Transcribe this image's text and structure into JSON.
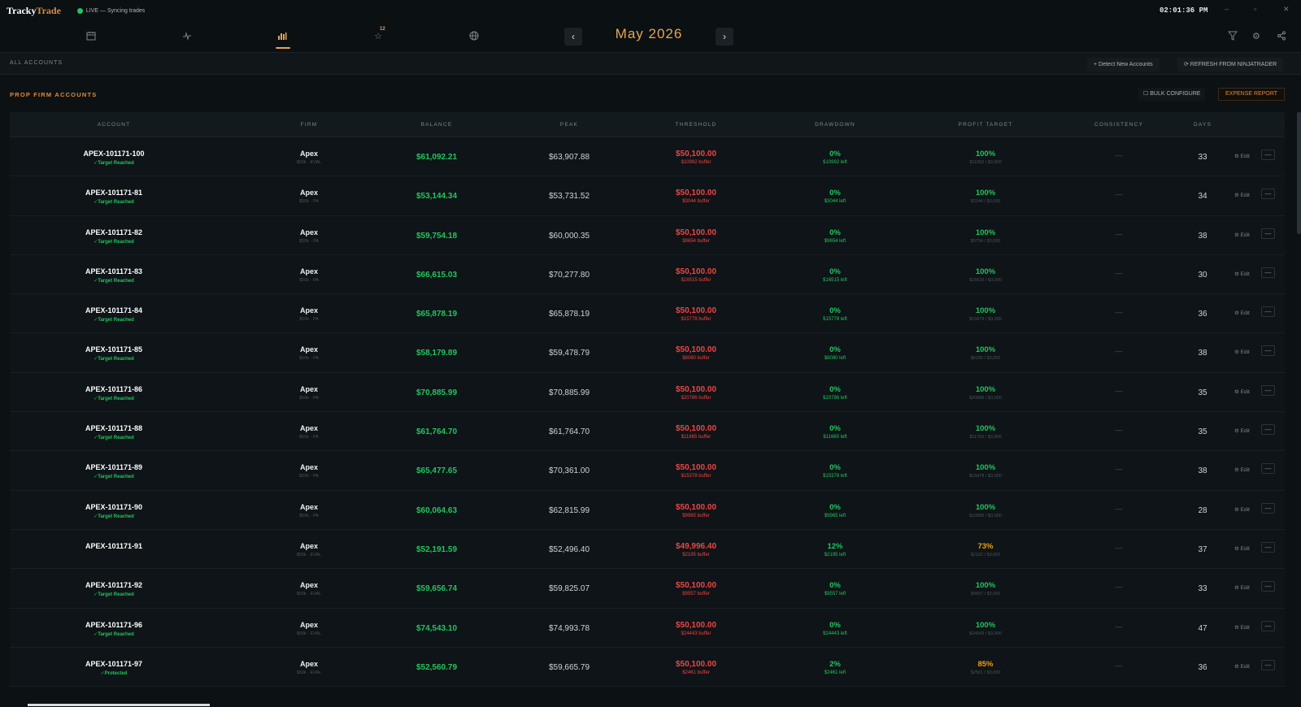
{
  "app": {
    "logo_main": "Tracky",
    "logo_accent": "Trade",
    "live_status": "LIVE — Syncing trades",
    "clock": "02:01:36 PM"
  },
  "nav": {
    "month": "May 2026",
    "badge": "12",
    "prev": "‹",
    "next": "›"
  },
  "accounts_bar": {
    "label": "ALL ACCOUNTS",
    "detect": "+ Detect New Accounts",
    "refresh": "⟳ REFRESH FROM NINJATRADER"
  },
  "section": {
    "title": "PROP FIRM ACCOUNTS",
    "bulk": "☐ BULK CONFIGURE",
    "expense": "EXPENSE REPORT"
  },
  "columns": [
    "ACCOUNT",
    "FIRM",
    "BALANCE",
    "PEAK",
    "THRESHOLD",
    "DRAWDOWN",
    "PROFIT TARGET",
    "CONSISTENCY",
    "DAYS"
  ],
  "rows": [
    {
      "account": "APEX-101171-100",
      "status": "✓Target Reached",
      "firm": "Apex",
      "firm_sub": "$50k · EVAL",
      "balance": "$61,092.21",
      "peak": "$63,907.88",
      "threshold": "$50,100.00",
      "buffer": "$10992 buffer",
      "drawdown": "0%",
      "dd_left": "$10992 left",
      "target": "100%",
      "target_sub": "$11092 / $3,000",
      "consistency": "—",
      "days": "33",
      "edit": "⚙ Edit",
      "remove": "—"
    },
    {
      "account": "APEX-101171-81",
      "status": "✓Target Reached",
      "firm": "Apex",
      "firm_sub": "$50k · PA",
      "balance": "$53,144.34",
      "peak": "$53,731.52",
      "threshold": "$50,100.00",
      "buffer": "$3044 buffer",
      "drawdown": "0%",
      "dd_left": "$3044 left",
      "target": "100%",
      "target_sub": "$3144 / $3,000",
      "consistency": "—",
      "days": "34",
      "edit": "⚙ Edit",
      "remove": "—"
    },
    {
      "account": "APEX-101171-82",
      "status": "✓Target Reached",
      "firm": "Apex",
      "firm_sub": "$50k · PA",
      "balance": "$59,754.18",
      "peak": "$60,000.35",
      "threshold": "$50,100.00",
      "buffer": "$9654 buffer",
      "drawdown": "0%",
      "dd_left": "$9654 left",
      "target": "100%",
      "target_sub": "$9754 / $3,000",
      "consistency": "—",
      "days": "38",
      "edit": "⚙ Edit",
      "remove": "—"
    },
    {
      "account": "APEX-101171-83",
      "status": "✓Target Reached",
      "firm": "Apex",
      "firm_sub": "$50k · PA",
      "balance": "$66,615.03",
      "peak": "$70,277.80",
      "threshold": "$50,100.00",
      "buffer": "$16515 buffer",
      "drawdown": "0%",
      "dd_left": "$16515 left",
      "target": "100%",
      "target_sub": "$16615 / $3,000",
      "consistency": "—",
      "days": "30",
      "edit": "⚙ Edit",
      "remove": "—"
    },
    {
      "account": "APEX-101171-84",
      "status": "✓Target Reached",
      "firm": "Apex",
      "firm_sub": "$50k · PA",
      "balance": "$65,878.19",
      "peak": "$65,878.19",
      "threshold": "$50,100.00",
      "buffer": "$15778 buffer",
      "drawdown": "0%",
      "dd_left": "$15778 left",
      "target": "100%",
      "target_sub": "$15878 / $3,000",
      "consistency": "—",
      "days": "36",
      "edit": "⚙ Edit",
      "remove": "—"
    },
    {
      "account": "APEX-101171-85",
      "status": "✓Target Reached",
      "firm": "Apex",
      "firm_sub": "$50k · PA",
      "balance": "$58,179.89",
      "peak": "$59,478.79",
      "threshold": "$50,100.00",
      "buffer": "$8080 buffer",
      "drawdown": "0%",
      "dd_left": "$8080 left",
      "target": "100%",
      "target_sub": "$8180 / $3,000",
      "consistency": "—",
      "days": "38",
      "edit": "⚙ Edit",
      "remove": "—"
    },
    {
      "account": "APEX-101171-86",
      "status": "✓Target Reached",
      "firm": "Apex",
      "firm_sub": "$50k · PA",
      "balance": "$70,885.99",
      "peak": "$70,885.99",
      "threshold": "$50,100.00",
      "buffer": "$20786 buffer",
      "drawdown": "0%",
      "dd_left": "$20786 left",
      "target": "100%",
      "target_sub": "$20886 / $3,000",
      "consistency": "—",
      "days": "35",
      "edit": "⚙ Edit",
      "remove": "—"
    },
    {
      "account": "APEX-101171-88",
      "status": "✓Target Reached",
      "firm": "Apex",
      "firm_sub": "$50k · PA",
      "balance": "$61,764.70",
      "peak": "$61,764.70",
      "threshold": "$50,100.00",
      "buffer": "$11665 buffer",
      "drawdown": "0%",
      "dd_left": "$11665 left",
      "target": "100%",
      "target_sub": "$11765 / $3,000",
      "consistency": "—",
      "days": "35",
      "edit": "⚙ Edit",
      "remove": "—"
    },
    {
      "account": "APEX-101171-89",
      "status": "✓Target Reached",
      "firm": "Apex",
      "firm_sub": "$50k · PA",
      "balance": "$65,477.65",
      "peak": "$70,361.00",
      "threshold": "$50,100.00",
      "buffer": "$15378 buffer",
      "drawdown": "0%",
      "dd_left": "$15378 left",
      "target": "100%",
      "target_sub": "$15478 / $3,000",
      "consistency": "—",
      "days": "38",
      "edit": "⚙ Edit",
      "remove": "—"
    },
    {
      "account": "APEX-101171-90",
      "status": "✓Target Reached",
      "firm": "Apex",
      "firm_sub": "$50k · PA",
      "balance": "$60,064.63",
      "peak": "$62,815.99",
      "threshold": "$50,100.00",
      "buffer": "$9965 buffer",
      "drawdown": "0%",
      "dd_left": "$9965 left",
      "target": "100%",
      "target_sub": "$10065 / $3,000",
      "consistency": "—",
      "days": "28",
      "edit": "⚙ Edit",
      "remove": "—"
    },
    {
      "account": "APEX-101171-91",
      "status": "",
      "firm": "Apex",
      "firm_sub": "$50k · EVAL",
      "balance": "$52,191.59",
      "peak": "$52,496.40",
      "threshold": "$49,996.40",
      "buffer": "$2195 buffer",
      "drawdown": "12%",
      "dd_left": "$2195 left",
      "target": "73%",
      "target_sub": "$2192 / $3,000",
      "consistency": "—",
      "days": "37",
      "edit": "⚙ Edit",
      "remove": "—",
      "partial": true
    },
    {
      "account": "APEX-101171-92",
      "status": "✓Target Reached",
      "firm": "Apex",
      "firm_sub": "$50k · EVAL",
      "balance": "$59,656.74",
      "peak": "$59,825.07",
      "threshold": "$50,100.00",
      "buffer": "$9557 buffer",
      "drawdown": "0%",
      "dd_left": "$9557 left",
      "target": "100%",
      "target_sub": "$9657 / $3,000",
      "consistency": "—",
      "days": "33",
      "edit": "⚙ Edit",
      "remove": "—"
    },
    {
      "account": "APEX-101171-96",
      "status": "✓Target Reached",
      "firm": "Apex",
      "firm_sub": "$50k · EVAL",
      "balance": "$74,543.10",
      "peak": "$74,993.78",
      "threshold": "$50,100.00",
      "buffer": "$24443 buffer",
      "drawdown": "0%",
      "dd_left": "$24443 left",
      "target": "100%",
      "target_sub": "$24543 / $3,000",
      "consistency": "—",
      "days": "47",
      "edit": "⚙ Edit",
      "remove": "—"
    },
    {
      "account": "APEX-101171-97",
      "status": "✓Protected",
      "firm": "Apex",
      "firm_sub": "$50k · EVAL",
      "balance": "$52,560.79",
      "peak": "$59,665.79",
      "threshold": "$50,100.00",
      "buffer": "$2461 buffer",
      "drawdown": "2%",
      "dd_left": "$2461 left",
      "target": "85%",
      "target_sub": "$2561 / $3,000",
      "consistency": "—",
      "days": "36",
      "edit": "⚙ Edit",
      "remove": "—",
      "partial": true
    }
  ]
}
